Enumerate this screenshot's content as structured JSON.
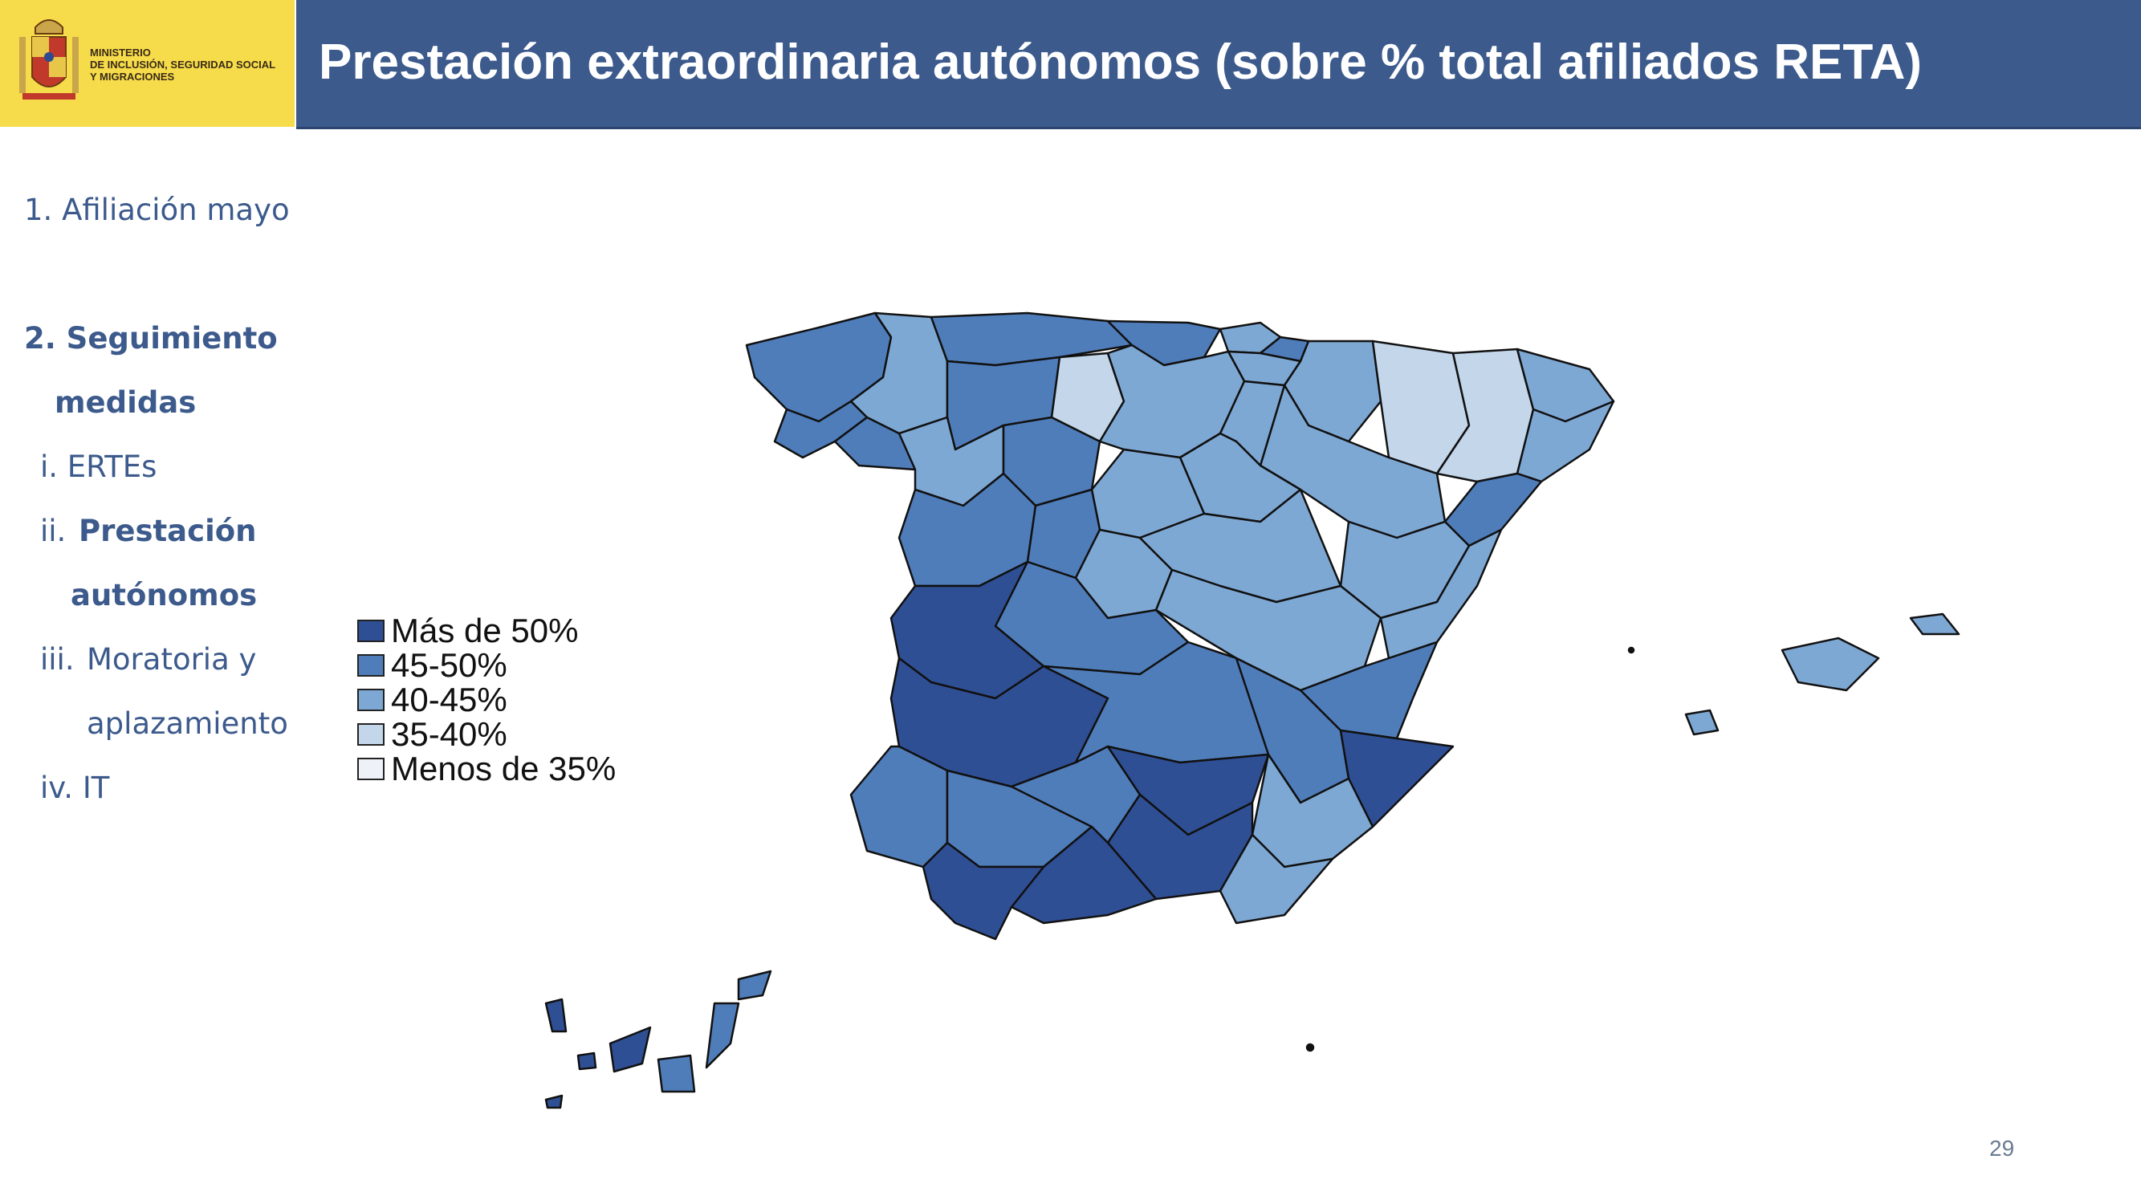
{
  "ministry": {
    "line1": "MINISTERIO",
    "line2": "DE INCLUSIÓN, SEGURIDAD SOCIAL",
    "line3": "Y MIGRACIONES"
  },
  "title": "Prestación extraordinaria autónomos (sobre % total afiliados RETA)",
  "nav": {
    "item1": "1. Afiliación mayo",
    "item2a": "2. Seguimiento",
    "item2b": "medidas",
    "sub_i": "i.   ERTEs",
    "sub_ii_num": "ii.",
    "sub_ii_a": "Prestación",
    "sub_ii_b": "autónomos",
    "sub_iii_num": "iii.",
    "sub_iii_a": "Moratoria y",
    "sub_iii_b": "aplazamiento",
    "sub_iv": "iv.  IT"
  },
  "legend": [
    {
      "label": "Más de 50%",
      "color": "#2f4f95"
    },
    {
      "label": "45-50%",
      "color": "#4f7dba"
    },
    {
      "label": "40-45%",
      "color": "#7ea8d4"
    },
    {
      "label": "35-40%",
      "color": "#c3d6ea"
    },
    {
      "label": "Menos de 35%",
      "color": "#eef2f8"
    }
  ],
  "colors": {
    "header_band": "#3c5a8c",
    "logo_background": "#f6dc4a",
    "nav_text": "#3c5a8c"
  },
  "map_icon": "spain-provinces-choropleth",
  "page_number": "29"
}
